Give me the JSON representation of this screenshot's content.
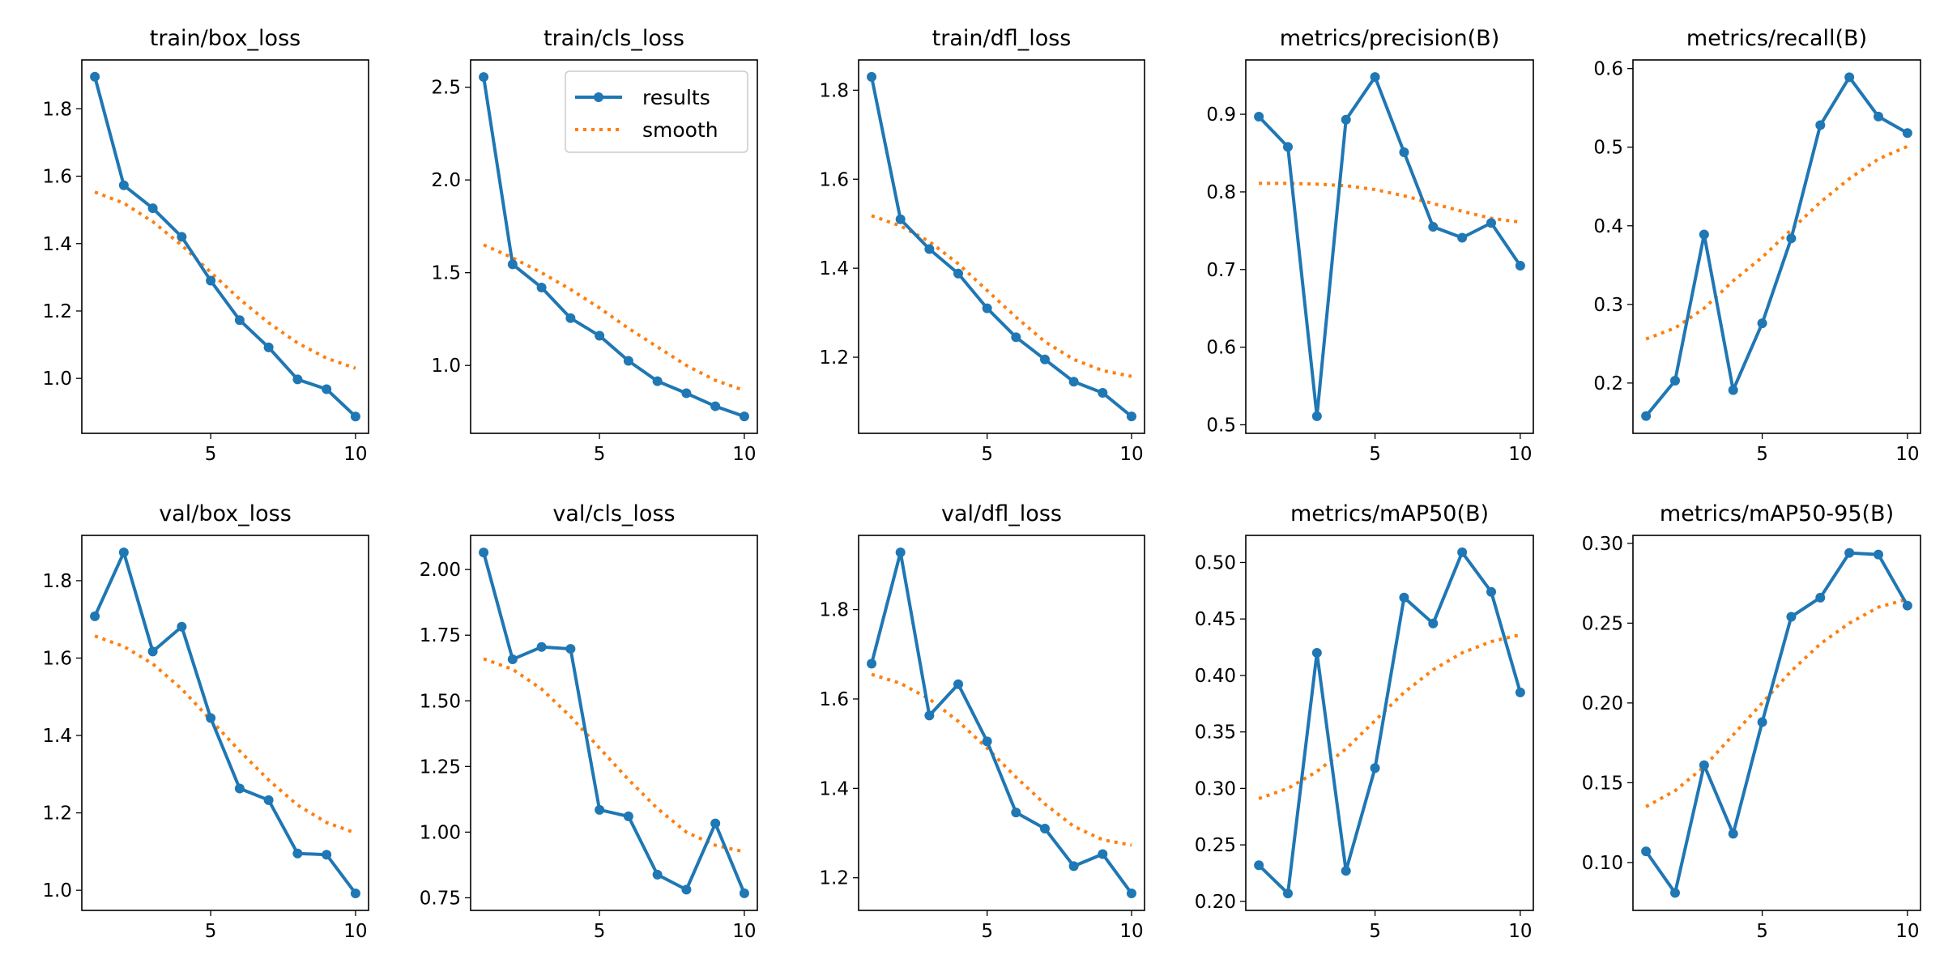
{
  "chart_data": [
    {
      "type": "line",
      "title": "train/box_loss",
      "x": [
        1,
        2,
        3,
        4,
        5,
        6,
        7,
        8,
        9,
        10
      ],
      "xticks": [
        5,
        10
      ],
      "ylim": [
        0.837,
        1.945
      ],
      "yticks": [
        "1.0",
        "1.2",
        "1.4",
        "1.6",
        "1.8"
      ],
      "grid": false,
      "series": [
        {
          "name": "results",
          "values": [
            1.895,
            1.573,
            1.505,
            1.42,
            1.29,
            1.173,
            1.092,
            0.997,
            0.968,
            0.887
          ]
        },
        {
          "name": "smooth",
          "values": [
            1.553,
            1.52,
            1.465,
            1.395,
            1.315,
            1.235,
            1.165,
            1.105,
            1.06,
            1.03
          ]
        }
      ]
    },
    {
      "type": "line",
      "title": "train/cls_loss",
      "x": [
        1,
        2,
        3,
        4,
        5,
        6,
        7,
        8,
        9,
        10
      ],
      "xticks": [
        5,
        10
      ],
      "ylim": [
        0.634,
        2.647
      ],
      "yticks": [
        "1.0",
        "1.5",
        "2.0",
        "2.5"
      ],
      "grid": false,
      "legend": "top-right",
      "series": [
        {
          "name": "results",
          "values": [
            2.555,
            1.545,
            1.42,
            1.255,
            1.16,
            1.025,
            0.915,
            0.85,
            0.78,
            0.725
          ]
        },
        {
          "name": "smooth",
          "values": [
            1.65,
            1.58,
            1.5,
            1.41,
            1.31,
            1.2,
            1.1,
            1.0,
            0.92,
            0.865
          ]
        }
      ]
    },
    {
      "type": "line",
      "title": "train/dfl_loss",
      "x": [
        1,
        2,
        3,
        4,
        5,
        6,
        7,
        8,
        9,
        10
      ],
      "xticks": [
        5,
        10
      ],
      "ylim": [
        1.029,
        1.868
      ],
      "yticks": [
        "1.2",
        "1.4",
        "1.6",
        "1.8"
      ],
      "grid": false,
      "series": [
        {
          "name": "results",
          "values": [
            1.83,
            1.51,
            1.443,
            1.388,
            1.31,
            1.245,
            1.195,
            1.145,
            1.12,
            1.067
          ]
        },
        {
          "name": "smooth",
          "values": [
            1.518,
            1.495,
            1.46,
            1.41,
            1.35,
            1.29,
            1.235,
            1.195,
            1.17,
            1.157
          ]
        }
      ]
    },
    {
      "type": "line",
      "title": "metrics/precision(B)",
      "x": [
        1,
        2,
        3,
        4,
        5,
        6,
        7,
        8,
        9,
        10
      ],
      "xticks": [
        5,
        10
      ],
      "ylim": [
        0.489,
        0.97
      ],
      "yticks": [
        "0.5",
        "0.6",
        "0.7",
        "0.8",
        "0.9"
      ],
      "grid": false,
      "series": [
        {
          "name": "results",
          "values": [
            0.897,
            0.858,
            0.511,
            0.893,
            0.948,
            0.851,
            0.755,
            0.741,
            0.76,
            0.705
          ]
        },
        {
          "name": "smooth",
          "values": [
            0.811,
            0.811,
            0.81,
            0.808,
            0.803,
            0.795,
            0.785,
            0.775,
            0.766,
            0.761
          ]
        }
      ]
    },
    {
      "type": "line",
      "title": "metrics/recall(B)",
      "x": [
        1,
        2,
        3,
        4,
        5,
        6,
        7,
        8,
        9,
        10
      ],
      "xticks": [
        5,
        10
      ],
      "ylim": [
        0.136,
        0.611
      ],
      "yticks": [
        "0.2",
        "0.3",
        "0.4",
        "0.5",
        "0.6"
      ],
      "grid": false,
      "series": [
        {
          "name": "results",
          "values": [
            0.158,
            0.203,
            0.389,
            0.191,
            0.276,
            0.384,
            0.528,
            0.589,
            0.539,
            0.518
          ]
        },
        {
          "name": "smooth",
          "values": [
            0.256,
            0.27,
            0.295,
            0.33,
            0.36,
            0.395,
            0.43,
            0.46,
            0.485,
            0.501
          ]
        }
      ]
    },
    {
      "type": "line",
      "title": "val/box_loss",
      "x": [
        1,
        2,
        3,
        4,
        5,
        6,
        7,
        8,
        9,
        10
      ],
      "xticks": [
        5,
        10
      ],
      "ylim": [
        0.948,
        1.917
      ],
      "yticks": [
        "1.0",
        "1.2",
        "1.4",
        "1.6",
        "1.8"
      ],
      "grid": false,
      "series": [
        {
          "name": "results",
          "values": [
            1.708,
            1.873,
            1.617,
            1.681,
            1.445,
            1.263,
            1.233,
            1.095,
            1.092,
            0.992
          ]
        },
        {
          "name": "smooth",
          "values": [
            1.657,
            1.63,
            1.585,
            1.52,
            1.44,
            1.36,
            1.285,
            1.22,
            1.175,
            1.148
          ]
        }
      ]
    },
    {
      "type": "line",
      "title": "val/cls_loss",
      "x": [
        1,
        2,
        3,
        4,
        5,
        6,
        7,
        8,
        9,
        10
      ],
      "xticks": [
        5,
        10
      ],
      "ylim": [
        0.702,
        2.13
      ],
      "yticks": [
        "0.75",
        "1.00",
        "1.25",
        "1.50",
        "1.75",
        "2.00"
      ],
      "grid": false,
      "series": [
        {
          "name": "results",
          "values": [
            2.065,
            1.658,
            1.705,
            1.698,
            1.085,
            1.06,
            0.838,
            0.781,
            1.033,
            0.767
          ]
        },
        {
          "name": "smooth",
          "values": [
            1.66,
            1.62,
            1.545,
            1.44,
            1.32,
            1.2,
            1.09,
            1.0,
            0.95,
            0.925
          ]
        }
      ]
    },
    {
      "type": "line",
      "title": "val/dfl_loss",
      "x": [
        1,
        2,
        3,
        4,
        5,
        6,
        7,
        8,
        9,
        10
      ],
      "xticks": [
        5,
        10
      ],
      "ylim": [
        1.127,
        1.966
      ],
      "yticks": [
        "1.2",
        "1.4",
        "1.6",
        "1.8"
      ],
      "grid": false,
      "series": [
        {
          "name": "results",
          "values": [
            1.679,
            1.928,
            1.563,
            1.633,
            1.505,
            1.346,
            1.31,
            1.226,
            1.253,
            1.165
          ]
        },
        {
          "name": "smooth",
          "values": [
            1.655,
            1.635,
            1.6,
            1.55,
            1.49,
            1.425,
            1.365,
            1.315,
            1.285,
            1.273
          ]
        }
      ]
    },
    {
      "type": "line",
      "title": "metrics/mAP50(B)",
      "x": [
        1,
        2,
        3,
        4,
        5,
        6,
        7,
        8,
        9,
        10
      ],
      "xticks": [
        5,
        10
      ],
      "ylim": [
        0.192,
        0.524
      ],
      "yticks": [
        "0.20",
        "0.25",
        "0.30",
        "0.35",
        "0.40",
        "0.45",
        "0.50"
      ],
      "grid": false,
      "series": [
        {
          "name": "results",
          "values": [
            0.232,
            0.207,
            0.42,
            0.227,
            0.318,
            0.469,
            0.446,
            0.509,
            0.474,
            0.385
          ]
        },
        {
          "name": "smooth",
          "values": [
            0.291,
            0.3,
            0.315,
            0.335,
            0.36,
            0.385,
            0.405,
            0.42,
            0.43,
            0.436
          ]
        }
      ]
    },
    {
      "type": "line",
      "title": "metrics/mAP50-95(B)",
      "x": [
        1,
        2,
        3,
        4,
        5,
        6,
        7,
        8,
        9,
        10
      ],
      "xticks": [
        5,
        10
      ],
      "ylim": [
        0.07,
        0.305
      ],
      "yticks": [
        "0.10",
        "0.15",
        "0.20",
        "0.25",
        "0.30"
      ],
      "grid": false,
      "series": [
        {
          "name": "results",
          "values": [
            0.107,
            0.081,
            0.161,
            0.118,
            0.188,
            0.254,
            0.266,
            0.294,
            0.293,
            0.261
          ]
        },
        {
          "name": "smooth",
          "values": [
            0.135,
            0.145,
            0.16,
            0.18,
            0.2,
            0.22,
            0.237,
            0.25,
            0.26,
            0.265
          ]
        }
      ]
    }
  ],
  "legend": {
    "results": "results",
    "smooth": "smooth"
  },
  "colors": {
    "results": "#1f77b4",
    "smooth": "#ff7f0e"
  }
}
